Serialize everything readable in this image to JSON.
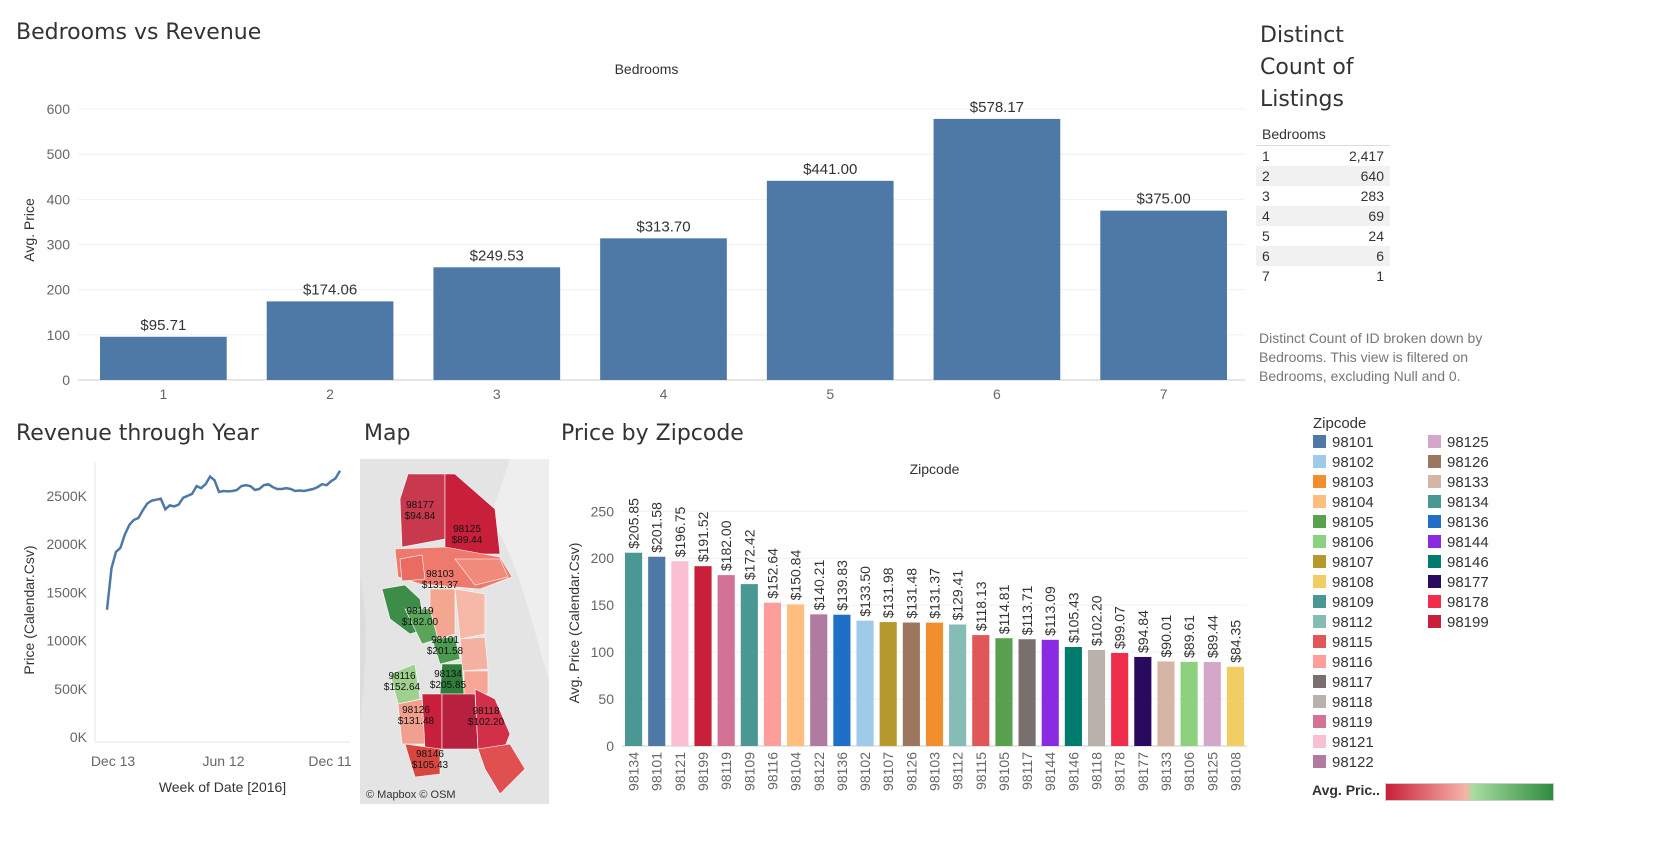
{
  "titles": {
    "bedrooms_vs_revenue": "Bedrooms vs Revenue",
    "revenue_through_year": "Revenue through Year",
    "map": "Map",
    "price_by_zipcode": "Price by Zipcode",
    "distinct_count": "Distinct Count of Listings"
  },
  "distinct_table": {
    "header": "Bedrooms",
    "rows": [
      {
        "bedrooms": "1",
        "count": "2,417"
      },
      {
        "bedrooms": "2",
        "count": "640"
      },
      {
        "bedrooms": "3",
        "count": "283"
      },
      {
        "bedrooms": "4",
        "count": "69"
      },
      {
        "bedrooms": "5",
        "count": "24"
      },
      {
        "bedrooms": "6",
        "count": "6"
      },
      {
        "bedrooms": "7",
        "count": "1"
      }
    ],
    "note": "Distinct Count of ID broken down by Bedrooms.  This view is filtered on Bedrooms, excluding Null and 0."
  },
  "legend": {
    "title": "Zipcode",
    "items": [
      {
        "zip": "98101",
        "color": "#4e79a7"
      },
      {
        "zip": "98102",
        "color": "#a0cbe8"
      },
      {
        "zip": "98103",
        "color": "#f28e2b"
      },
      {
        "zip": "98104",
        "color": "#ffbe7d"
      },
      {
        "zip": "98105",
        "color": "#59a14f"
      },
      {
        "zip": "98106",
        "color": "#8cd17d"
      },
      {
        "zip": "98107",
        "color": "#b6992d"
      },
      {
        "zip": "98108",
        "color": "#f1ce63"
      },
      {
        "zip": "98109",
        "color": "#499894"
      },
      {
        "zip": "98112",
        "color": "#86bcb6"
      },
      {
        "zip": "98115",
        "color": "#e15759"
      },
      {
        "zip": "98116",
        "color": "#ff9d9a"
      },
      {
        "zip": "98117",
        "color": "#79706e"
      },
      {
        "zip": "98118",
        "color": "#bab0ac"
      },
      {
        "zip": "98119",
        "color": "#d37295"
      },
      {
        "zip": "98121",
        "color": "#fabfd2"
      },
      {
        "zip": "98122",
        "color": "#b07aa1"
      },
      {
        "zip": "98125",
        "color": "#d4a6c8"
      },
      {
        "zip": "98126",
        "color": "#9d7660"
      },
      {
        "zip": "98133",
        "color": "#d7b5a6"
      },
      {
        "zip": "98134",
        "color": "#499894"
      },
      {
        "zip": "98136",
        "color": "#1f6fc6"
      },
      {
        "zip": "98144",
        "color": "#8a2be2"
      },
      {
        "zip": "98146",
        "color": "#007c6e"
      },
      {
        "zip": "98177",
        "color": "#2a0a5e"
      },
      {
        "zip": "98178",
        "color": "#f02d4b"
      },
      {
        "zip": "98199",
        "color": "#c8203a"
      }
    ],
    "avg_price_label": "Avg. Pric..",
    "gradient_colors": [
      "#c8203a",
      "#f7b5a8",
      "#a8dca0",
      "#2e8b3f"
    ]
  },
  "map": {
    "attribution": "© Mapbox © OSM",
    "labels": [
      {
        "zip": "98177",
        "price": "$94.84"
      },
      {
        "zip": "98125",
        "price": "$89.44"
      },
      {
        "zip": "98103",
        "price": "$131.37"
      },
      {
        "zip": "98119",
        "price": "$182.00"
      },
      {
        "zip": "98101",
        "price": "$201.58"
      },
      {
        "zip": "98134",
        "price": "$205.85"
      },
      {
        "zip": "98116",
        "price": "$152.64"
      },
      {
        "zip": "98126",
        "price": "$131.48"
      },
      {
        "zip": "98118",
        "price": "$102.20"
      },
      {
        "zip": "98146",
        "price": "$105.43"
      }
    ]
  },
  "chart_data": [
    {
      "type": "bar",
      "title": "Bedrooms vs Revenue",
      "subtitle": "Bedrooms",
      "categories": [
        "1",
        "2",
        "3",
        "4",
        "5",
        "6",
        "7"
      ],
      "values": [
        95.71,
        174.06,
        249.53,
        313.7,
        441.0,
        578.17,
        375.0
      ],
      "labels": [
        "$95.71",
        "$174.06",
        "$249.53",
        "$313.70",
        "$441.00",
        "$578.17",
        "$375.00"
      ],
      "ylabel": "Avg. Price",
      "yticks": [
        0,
        100,
        200,
        300,
        400,
        500,
        600
      ],
      "ylim": [
        0,
        620
      ],
      "color": "#4e79a7"
    },
    {
      "type": "line",
      "title": "Revenue through Year",
      "xlabel": "Week of Date [2016]",
      "ylabel": "Price (Calendar.Csv)",
      "xticks": [
        "Dec 13",
        "Jun 12",
        "Dec 11"
      ],
      "ytick_labels": [
        "0K",
        "500K",
        "1000K",
        "1500K",
        "2000K",
        "2500K"
      ],
      "yticks": [
        0,
        500000,
        1000000,
        1500000,
        2000000,
        2500000
      ],
      "ylim": [
        -50000,
        2850000
      ],
      "x": [
        0,
        1,
        2,
        3,
        4,
        5,
        6,
        7,
        8,
        9,
        10,
        11,
        12,
        13,
        14,
        15,
        16,
        17,
        18,
        19,
        20,
        21,
        22,
        23,
        24,
        25,
        26,
        27,
        28,
        29,
        30,
        31,
        32,
        33,
        34,
        35,
        36,
        37,
        38,
        39,
        40,
        41,
        42,
        43,
        44,
        45,
        46,
        47,
        48,
        49,
        50,
        51,
        52
      ],
      "values": [
        1320000,
        1750000,
        1920000,
        1960000,
        2100000,
        2200000,
        2250000,
        2270000,
        2350000,
        2420000,
        2450000,
        2460000,
        2470000,
        2360000,
        2400000,
        2390000,
        2410000,
        2480000,
        2500000,
        2520000,
        2600000,
        2580000,
        2620000,
        2700000,
        2660000,
        2540000,
        2550000,
        2545000,
        2550000,
        2560000,
        2600000,
        2610000,
        2600000,
        2560000,
        2570000,
        2610000,
        2620000,
        2590000,
        2570000,
        2570000,
        2580000,
        2570000,
        2550000,
        2555000,
        2550000,
        2560000,
        2570000,
        2590000,
        2620000,
        2610000,
        2650000,
        2680000,
        2760000
      ],
      "color": "#4e79a7"
    },
    {
      "type": "bar",
      "title": "Price by Zipcode",
      "subtitle": "Zipcode",
      "ylabel": "Avg. Price (Calendar.Csv)",
      "yticks": [
        0,
        50,
        100,
        150,
        200,
        250
      ],
      "ylim": [
        0,
        262
      ],
      "categories": [
        "98134",
        "98101",
        "98121",
        "98199",
        "98119",
        "98109",
        "98116",
        "98104",
        "98122",
        "98136",
        "98102",
        "98107",
        "98126",
        "98103",
        "98112",
        "98115",
        "98105",
        "98117",
        "98144",
        "98146",
        "98118",
        "98178",
        "98177",
        "98133",
        "98106",
        "98125",
        "98108"
      ],
      "values": [
        205.85,
        201.58,
        196.75,
        191.52,
        182.0,
        172.42,
        152.64,
        150.84,
        140.21,
        139.83,
        133.5,
        131.98,
        131.48,
        131.37,
        129.41,
        118.13,
        114.81,
        113.71,
        113.09,
        105.43,
        102.2,
        99.07,
        94.84,
        90.01,
        89.61,
        89.44,
        84.35
      ],
      "labels": [
        "$205.85",
        "$201.58",
        "$196.75",
        "$191.52",
        "$182.00",
        "$172.42",
        "$152.64",
        "$150.84",
        "$140.21",
        "$139.83",
        "$133.50",
        "$131.98",
        "$131.48",
        "$131.37",
        "$129.41",
        "$118.13",
        "$114.81",
        "$113.71",
        "$113.09",
        "$105.43",
        "$102.20",
        "$99.07",
        "$94.84",
        "$90.01",
        "$89.61",
        "$89.44",
        "$84.35"
      ],
      "colors": [
        "#499894",
        "#4e79a7",
        "#fabfd2",
        "#c8203a",
        "#d37295",
        "#499894",
        "#ff9d9a",
        "#ffbe7d",
        "#b07aa1",
        "#1f6fc6",
        "#a0cbe8",
        "#b6992d",
        "#9d7660",
        "#f28e2b",
        "#86bcb6",
        "#e15759",
        "#59a14f",
        "#79706e",
        "#8a2be2",
        "#007c6e",
        "#bab0ac",
        "#f02d4b",
        "#2a0a5e",
        "#d7b5a6",
        "#8cd17d",
        "#d4a6c8",
        "#f1ce63"
      ]
    }
  ]
}
